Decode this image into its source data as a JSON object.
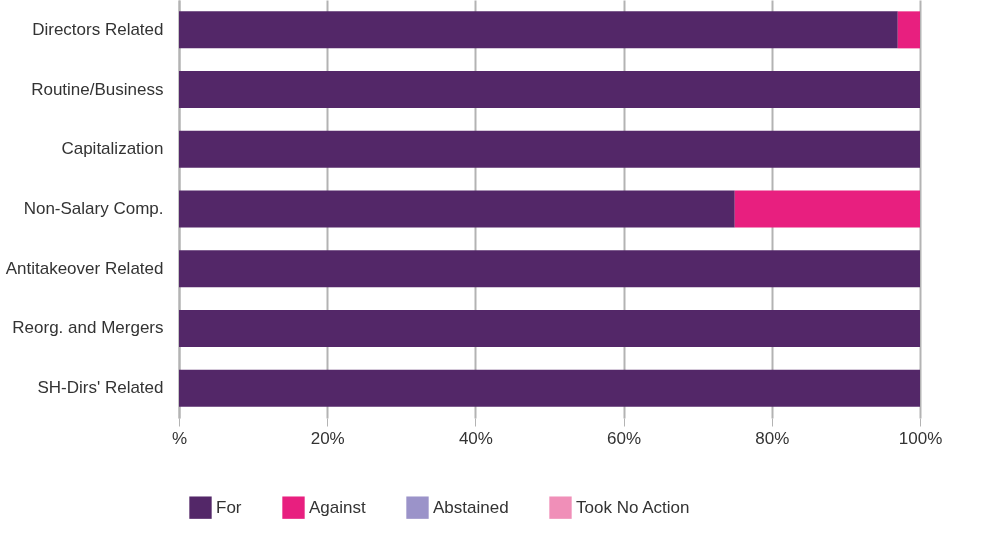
{
  "chart_data": {
    "type": "bar",
    "orientation": "horizontal",
    "stacked": true,
    "categories": [
      "Directors Related",
      "Routine/Business",
      "Capitalization",
      "Non-Salary Comp.",
      "Antitakeover Related",
      "Reorg. and Mergers",
      "SH-Dirs' Related"
    ],
    "series": [
      {
        "name": "For",
        "color": "#532768",
        "values": [
          97,
          100,
          100,
          75,
          100,
          100,
          100
        ]
      },
      {
        "name": "Against",
        "color": "#e81f7f",
        "values": [
          3,
          0,
          0,
          25,
          0,
          0,
          0
        ]
      },
      {
        "name": "Abstained",
        "color": "#9b93c9",
        "values": [
          0,
          0,
          0,
          0,
          0,
          0,
          0
        ]
      },
      {
        "name": "Took No Action",
        "color": "#f08fb8",
        "values": [
          0,
          0,
          0,
          0,
          0,
          0,
          0
        ]
      }
    ],
    "xlim": [
      0,
      100
    ],
    "xticks": [
      {
        "value": 0,
        "label": "%"
      },
      {
        "value": 20,
        "label": "20%"
      },
      {
        "value": 40,
        "label": "40%"
      },
      {
        "value": 60,
        "label": "60%"
      },
      {
        "value": 80,
        "label": "80%"
      },
      {
        "value": 100,
        "label": "100%"
      }
    ],
    "grid": "x",
    "legend": "bottom"
  }
}
